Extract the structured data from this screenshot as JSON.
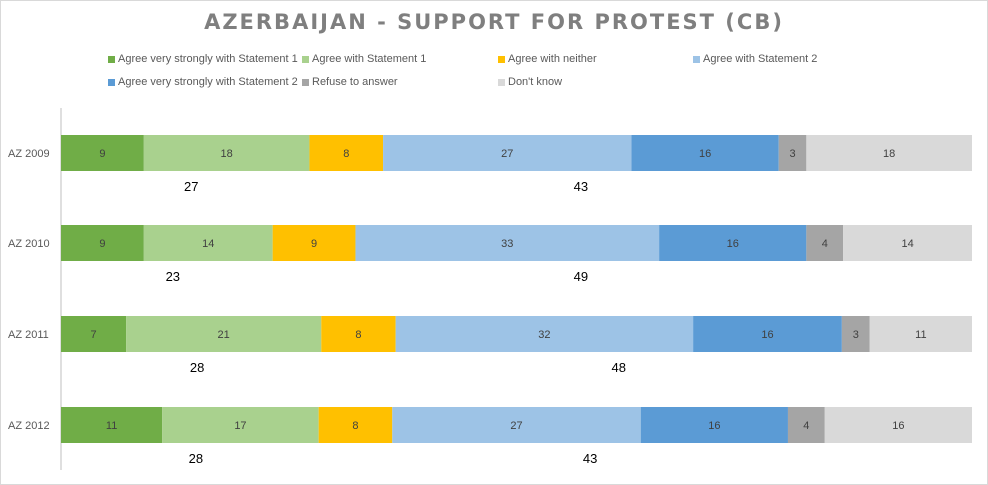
{
  "chart_data": {
    "type": "bar",
    "orientation": "horizontal",
    "stacked": true,
    "percent_stacked": true,
    "title": "AZERBAIJAN - SUPPORT FOR PROTEST (CB)",
    "categories": [
      "AZ 2009",
      "AZ 2010",
      "AZ 2011",
      "AZ 2012"
    ],
    "series": [
      {
        "name": "Agree very strongly with Statement 1",
        "color": "#70ad47",
        "values": [
          9,
          9,
          7,
          11
        ]
      },
      {
        "name": "Agree with Statement 1",
        "color": "#a9d18e",
        "values": [
          18,
          14,
          21,
          17
        ]
      },
      {
        "name": "Agree with neither",
        "color": "#ffc000",
        "values": [
          8,
          9,
          8,
          8
        ]
      },
      {
        "name": "Agree with Statement 2",
        "color": "#9dc3e6",
        "values": [
          27,
          33,
          32,
          27
        ]
      },
      {
        "name": "Agree very strongly with Statement 2",
        "color": "#5b9bd5",
        "values": [
          16,
          16,
          16,
          16
        ]
      },
      {
        "name": "Refuse to answer",
        "color": "#a5a5a5",
        "values": [
          3,
          4,
          3,
          4
        ]
      },
      {
        "name": "Don't know",
        "color": "#d9d9d9",
        "values": [
          18,
          14,
          11,
          16
        ]
      }
    ],
    "totals": {
      "statement_1": [
        "27",
        "23",
        "28",
        "28"
      ],
      "statement_2": [
        "43",
        "49",
        "48",
        "43"
      ]
    },
    "legend_position": "top",
    "grid": false
  }
}
